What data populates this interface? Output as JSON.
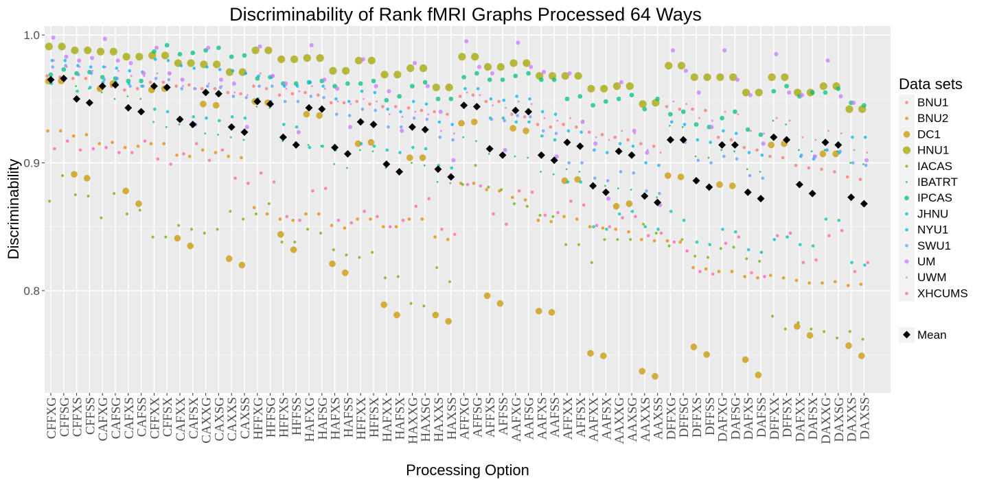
{
  "chart_data": {
    "type": "scatter",
    "title": "Discriminability of Rank fMRI Graphs Processed 64 Ways",
    "xlabel": "Processing Option",
    "ylabel": "Discriminability",
    "ylim": [
      0.72,
      1.007
    ],
    "yticks": [
      0.8,
      0.9,
      1.0
    ],
    "ytick_labels": [
      "0.8",
      "0.9",
      "1.0"
    ],
    "grid": true,
    "legend_position": "right",
    "legend_title": "Data sets",
    "categories": [
      "CFFXG",
      "CFFSG",
      "CFFXS",
      "CFFSS",
      "CAFXG",
      "CAFSG",
      "CAFXS",
      "CAFSS",
      "CFFXX",
      "CFFSX",
      "CAFXX",
      "CAFSX",
      "CAXXG",
      "CAXSG",
      "CAXXS",
      "CAXSS",
      "HFFXG",
      "HFFSG",
      "HFFXS",
      "HFFSS",
      "HAFXG",
      "HAFSG",
      "HAFXS",
      "HAFSS",
      "HFFXX",
      "HFFSX",
      "HAFXX",
      "HAFSX",
      "HAXXG",
      "HAXSG",
      "HAXXS",
      "HAXSS",
      "AFFXG",
      "AFFSG",
      "AFFXS",
      "AFFSS",
      "AAFXG",
      "AAFSG",
      "AAFXS",
      "AAFSS",
      "AFFXX",
      "AFFSX",
      "AAFXX",
      "AAFSX",
      "AAXXG",
      "AAXSG",
      "AAXXS",
      "AAXSS",
      "DFFXG",
      "DFFSG",
      "DFFXS",
      "DFFSS",
      "DAFXG",
      "DAFSG",
      "DAFXS",
      "DAFSS",
      "DFFXX",
      "DFFSX",
      "DAFXX",
      "DAFSX",
      "DAXXG",
      "DAXSG",
      "DAXXS",
      "DAXSS"
    ],
    "series": [
      {
        "name": "BNU1",
        "color": "#F8766D",
        "size": 3.5,
        "values": [
          0.968,
          0.967,
          0.966,
          0.966,
          0.958,
          0.96,
          0.957,
          0.958,
          0.963,
          0.963,
          0.96,
          0.961,
          0.958,
          0.958,
          0.955,
          0.954,
          0.96,
          0.958,
          0.953,
          0.954,
          0.955,
          0.953,
          0.947,
          0.947,
          0.948,
          0.946,
          0.944,
          0.944,
          0.943,
          0.941,
          0.94,
          0.938,
          0.952,
          0.953,
          0.948,
          0.948,
          0.938,
          0.936,
          0.93,
          0.928,
          0.93,
          0.928,
          0.924,
          0.922,
          0.92,
          0.918,
          0.915,
          0.913,
          0.944,
          0.942,
          0.942,
          0.941,
          0.92,
          0.918,
          0.912,
          0.91,
          0.905,
          0.904,
          0.898,
          0.896,
          0.895,
          0.893,
          0.889,
          0.887
        ]
      },
      {
        "name": "BNU2",
        "color": "#E58700",
        "size": 3.5,
        "values": [
          0.925,
          0.925,
          0.921,
          0.922,
          0.915,
          0.916,
          0.912,
          0.913,
          0.915,
          0.915,
          0.906,
          0.905,
          0.91,
          0.908,
          0.905,
          0.904,
          0.865,
          0.86,
          0.856,
          0.855,
          0.86,
          0.86,
          0.851,
          0.849,
          0.856,
          0.856,
          0.85,
          0.85,
          0.856,
          0.856,
          0.842,
          0.84,
          0.884,
          0.884,
          0.879,
          0.878,
          0.873,
          0.871,
          0.855,
          0.854,
          0.858,
          0.856,
          0.85,
          0.849,
          0.848,
          0.846,
          0.84,
          0.839,
          0.839,
          0.838,
          0.818,
          0.817,
          0.815,
          0.815,
          0.811,
          0.81,
          0.812,
          0.81,
          0.808,
          0.806,
          0.806,
          0.807,
          0.804,
          0.805
        ]
      },
      {
        "name": "DC1",
        "color": "#C99800",
        "size": 8.5,
        "values": [
          0.964,
          0.964,
          0.891,
          0.888,
          0.958,
          0.962,
          0.878,
          0.868,
          0.957,
          0.958,
          0.841,
          0.835,
          0.946,
          0.945,
          0.825,
          0.82,
          0.948,
          0.947,
          0.844,
          0.832,
          0.938,
          0.937,
          0.821,
          0.814,
          0.915,
          0.916,
          0.789,
          0.781,
          0.904,
          0.904,
          0.781,
          0.776,
          0.931,
          0.932,
          0.796,
          0.79,
          0.927,
          0.925,
          0.784,
          0.783,
          0.886,
          0.887,
          0.751,
          0.749,
          0.866,
          0.868,
          0.737,
          0.733,
          0.89,
          0.889,
          0.756,
          0.75,
          0.883,
          0.882,
          0.746,
          0.734,
          0.914,
          0.915,
          0.772,
          0.765,
          0.907,
          0.907,
          0.757,
          0.749
        ]
      },
      {
        "name": "HNU1",
        "color": "#A3A500",
        "size": 10,
        "values": [
          0.991,
          0.991,
          0.988,
          0.988,
          0.987,
          0.987,
          0.983,
          0.983,
          0.984,
          0.984,
          0.978,
          0.978,
          0.977,
          0.977,
          0.971,
          0.971,
          0.988,
          0.988,
          0.981,
          0.981,
          0.982,
          0.982,
          0.972,
          0.972,
          0.98,
          0.98,
          0.969,
          0.969,
          0.974,
          0.974,
          0.959,
          0.959,
          0.983,
          0.983,
          0.975,
          0.975,
          0.978,
          0.978,
          0.968,
          0.968,
          0.968,
          0.968,
          0.958,
          0.958,
          0.96,
          0.96,
          0.946,
          0.947,
          0.976,
          0.976,
          0.967,
          0.967,
          0.967,
          0.967,
          0.955,
          0.955,
          0.967,
          0.967,
          0.955,
          0.955,
          0.96,
          0.96,
          0.942,
          0.942
        ]
      },
      {
        "name": "IACAS",
        "color": "#6BB100",
        "size": 3,
        "values": [
          0.87,
          0.89,
          0.875,
          0.874,
          0.857,
          0.876,
          0.86,
          0.863,
          0.842,
          0.842,
          0.851,
          0.848,
          0.845,
          0.848,
          0.862,
          0.856,
          0.86,
          0.868,
          0.838,
          0.838,
          0.848,
          0.845,
          0.832,
          0.828,
          0.826,
          0.83,
          0.81,
          0.811,
          0.79,
          0.788,
          0.818,
          0.807,
          0.883,
          0.898,
          0.881,
          0.879,
          0.868,
          0.866,
          0.859,
          0.858,
          0.836,
          0.836,
          0.822,
          0.84,
          0.84,
          0.84,
          0.852,
          0.845,
          0.835,
          0.84,
          0.827,
          0.826,
          0.833,
          0.834,
          0.825,
          0.823,
          0.78,
          0.77,
          0.775,
          0.77,
          0.768,
          0.763,
          0.768,
          0.762
        ]
      },
      {
        "name": "IBATRT",
        "color": "#00BA38",
        "size": 1.6,
        "values": [
          0.962,
          0.965,
          0.96,
          0.958,
          0.955,
          0.95,
          0.952,
          0.95,
          0.932,
          0.928,
          0.93,
          0.928,
          0.923,
          0.922,
          0.92,
          0.918,
          0.944,
          0.943,
          0.917,
          0.916,
          0.914,
          0.913,
          0.899,
          0.896,
          0.91,
          0.909,
          0.896,
          0.894,
          0.9,
          0.898,
          0.885,
          0.884,
          0.92,
          0.917,
          0.907,
          0.906,
          0.905,
          0.904,
          0.893,
          0.891,
          0.895,
          0.893,
          0.883,
          0.882,
          0.88,
          0.879,
          0.875,
          0.873,
          0.929,
          0.928,
          0.905,
          0.904,
          0.91,
          0.909,
          0.895,
          0.893,
          0.933,
          0.93,
          0.91,
          0.909,
          0.91,
          0.909,
          0.9,
          0.899
        ]
      },
      {
        "name": "IPCAS",
        "color": "#00BF7D",
        "size": 5.5,
        "values": [
          0.969,
          0.973,
          0.97,
          0.971,
          0.967,
          0.966,
          0.964,
          0.964,
          0.987,
          0.992,
          0.985,
          0.986,
          0.988,
          0.99,
          0.983,
          0.984,
          0.966,
          0.967,
          0.962,
          0.962,
          0.963,
          0.964,
          0.96,
          0.962,
          0.962,
          0.964,
          0.949,
          0.952,
          0.96,
          0.963,
          0.95,
          0.95,
          0.967,
          0.97,
          0.965,
          0.965,
          0.968,
          0.97,
          0.965,
          0.965,
          0.95,
          0.952,
          0.945,
          0.948,
          0.95,
          0.953,
          0.942,
          0.95,
          0.938,
          0.94,
          0.93,
          0.928,
          0.935,
          0.94,
          0.926,
          0.922,
          0.956,
          0.96,
          0.952,
          0.955,
          0.955,
          0.958,
          0.947,
          0.945
        ]
      },
      {
        "name": "JHNU",
        "color": "#00C0B8",
        "size": 3.5,
        "values": [
          0.962,
          0.965,
          0.956,
          0.959,
          0.963,
          0.963,
          0.962,
          0.96,
          0.942,
          0.94,
          0.935,
          0.936,
          0.935,
          0.933,
          0.936,
          0.935,
          0.95,
          0.948,
          0.93,
          0.928,
          0.912,
          0.913,
          0.91,
          0.908,
          0.915,
          0.913,
          0.91,
          0.908,
          0.912,
          0.911,
          0.898,
          0.896,
          0.945,
          0.945,
          0.935,
          0.935,
          0.932,
          0.932,
          0.921,
          0.918,
          0.885,
          0.885,
          0.85,
          0.848,
          0.86,
          0.862,
          0.85,
          0.848,
          0.862,
          0.855,
          0.838,
          0.836,
          0.848,
          0.846,
          0.832,
          0.83,
          0.84,
          0.842,
          0.836,
          0.835,
          0.856,
          0.855,
          0.822,
          0.82
        ]
      },
      {
        "name": "NYU1",
        "color": "#00B4EF",
        "size": 3.5,
        "values": [
          0.98,
          0.98,
          0.976,
          0.975,
          0.975,
          0.974,
          0.972,
          0.971,
          0.981,
          0.98,
          0.976,
          0.974,
          0.975,
          0.973,
          0.972,
          0.97,
          0.968,
          0.967,
          0.96,
          0.96,
          0.963,
          0.96,
          0.95,
          0.948,
          0.956,
          0.955,
          0.942,
          0.94,
          0.948,
          0.946,
          0.932,
          0.93,
          0.958,
          0.958,
          0.95,
          0.949,
          0.952,
          0.95,
          0.94,
          0.938,
          0.925,
          0.924,
          0.91,
          0.908,
          0.915,
          0.913,
          0.9,
          0.898,
          0.932,
          0.93,
          0.918,
          0.916,
          0.925,
          0.923,
          0.908,
          0.906,
          0.92,
          0.918,
          0.905,
          0.903,
          0.91,
          0.908,
          0.92,
          0.92
        ]
      },
      {
        "name": "SWU1",
        "color": "#619CFF",
        "size": 3.5,
        "values": [
          0.975,
          0.976,
          0.969,
          0.97,
          0.965,
          0.966,
          0.96,
          0.96,
          0.966,
          0.965,
          0.958,
          0.958,
          0.96,
          0.959,
          0.952,
          0.951,
          0.96,
          0.96,
          0.948,
          0.948,
          0.952,
          0.951,
          0.938,
          0.937,
          0.942,
          0.941,
          0.928,
          0.928,
          0.935,
          0.934,
          0.92,
          0.918,
          0.945,
          0.944,
          0.934,
          0.933,
          0.937,
          0.936,
          0.925,
          0.923,
          0.9,
          0.9,
          0.888,
          0.886,
          0.893,
          0.892,
          0.878,
          0.876,
          0.918,
          0.916,
          0.902,
          0.9,
          0.905,
          0.903,
          0.89,
          0.888,
          0.92,
          0.918,
          0.906,
          0.905,
          0.91,
          0.909,
          0.9,
          0.898
        ]
      },
      {
        "name": "UM",
        "color": "#C77CFF",
        "size": 5,
        "values": [
          0.998,
          0.983,
          0.98,
          0.982,
          0.997,
          0.98,
          0.978,
          0.97,
          0.99,
          0.97,
          0.965,
          0.93,
          0.99,
          0.965,
          0.962,
          0.928,
          0.991,
          0.968,
          0.962,
          0.924,
          0.992,
          0.965,
          0.958,
          0.928,
          0.981,
          0.96,
          0.956,
          0.925,
          0.978,
          0.96,
          0.94,
          0.902,
          0.995,
          0.975,
          0.97,
          0.91,
          0.994,
          0.975,
          0.971,
          0.905,
          0.97,
          0.932,
          0.915,
          0.872,
          0.963,
          0.925,
          0.908,
          0.867,
          0.988,
          0.972,
          0.955,
          0.928,
          0.988,
          0.965,
          0.953,
          0.915,
          0.985,
          0.955,
          0.953,
          0.905,
          0.98,
          0.952,
          0.947,
          0.902
        ]
      },
      {
        "name": "UWM",
        "color": "#F564E3",
        "size": 1.6,
        "values": [
          0.98,
          0.975,
          0.975,
          0.972,
          0.975,
          0.972,
          0.968,
          0.968,
          0.97,
          0.97,
          0.96,
          0.958,
          0.962,
          0.96,
          0.955,
          0.953,
          0.97,
          0.968,
          0.958,
          0.956,
          0.96,
          0.958,
          0.948,
          0.946,
          0.95,
          0.948,
          0.938,
          0.936,
          0.94,
          0.938,
          0.925,
          0.923,
          0.955,
          0.953,
          0.945,
          0.943,
          0.948,
          0.946,
          0.935,
          0.933,
          0.935,
          0.933,
          0.92,
          0.918,
          0.925,
          0.923,
          0.91,
          0.908,
          0.948,
          0.946,
          0.935,
          0.933,
          0.94,
          0.938,
          0.925,
          0.923,
          0.935,
          0.933,
          0.92,
          0.918,
          0.925,
          0.923,
          0.91,
          0.908
        ]
      },
      {
        "name": "XHCUMS",
        "color": "#FF64B0",
        "size": 3.5,
        "values": [
          0.911,
          0.917,
          0.91,
          0.911,
          0.912,
          0.908,
          0.908,
          0.917,
          0.903,
          0.899,
          0.907,
          0.915,
          0.902,
          0.91,
          0.888,
          0.884,
          0.892,
          0.885,
          0.858,
          0.855,
          0.878,
          0.88,
          0.855,
          0.853,
          0.862,
          0.858,
          0.85,
          0.855,
          0.866,
          0.872,
          0.848,
          0.844,
          0.883,
          0.882,
          0.86,
          0.852,
          0.878,
          0.877,
          0.859,
          0.861,
          0.87,
          0.867,
          0.851,
          0.85,
          0.857,
          0.858,
          0.843,
          0.845,
          0.838,
          0.831,
          0.815,
          0.813,
          0.837,
          0.842,
          0.814,
          0.811,
          0.843,
          0.845,
          0.822,
          0.824,
          0.843,
          0.847,
          0.815,
          0.822
        ]
      }
    ],
    "mean": {
      "name": "Mean",
      "color": "#000000",
      "values": [
        0.965,
        0.966,
        0.95,
        0.947,
        0.96,
        0.961,
        0.943,
        0.94,
        0.96,
        0.959,
        0.934,
        0.93,
        0.955,
        0.954,
        0.928,
        0.924,
        0.948,
        0.946,
        0.92,
        0.914,
        0.943,
        0.942,
        0.912,
        0.907,
        0.932,
        0.93,
        0.899,
        0.893,
        0.928,
        0.926,
        0.895,
        0.889,
        0.945,
        0.944,
        0.911,
        0.906,
        0.941,
        0.94,
        0.906,
        0.902,
        0.916,
        0.913,
        0.882,
        0.877,
        0.909,
        0.906,
        0.874,
        0.869,
        0.918,
        0.918,
        0.886,
        0.881,
        0.914,
        0.914,
        0.877,
        0.872,
        0.92,
        0.918,
        0.883,
        0.876,
        0.916,
        0.914,
        0.873,
        0.868
      ]
    }
  }
}
